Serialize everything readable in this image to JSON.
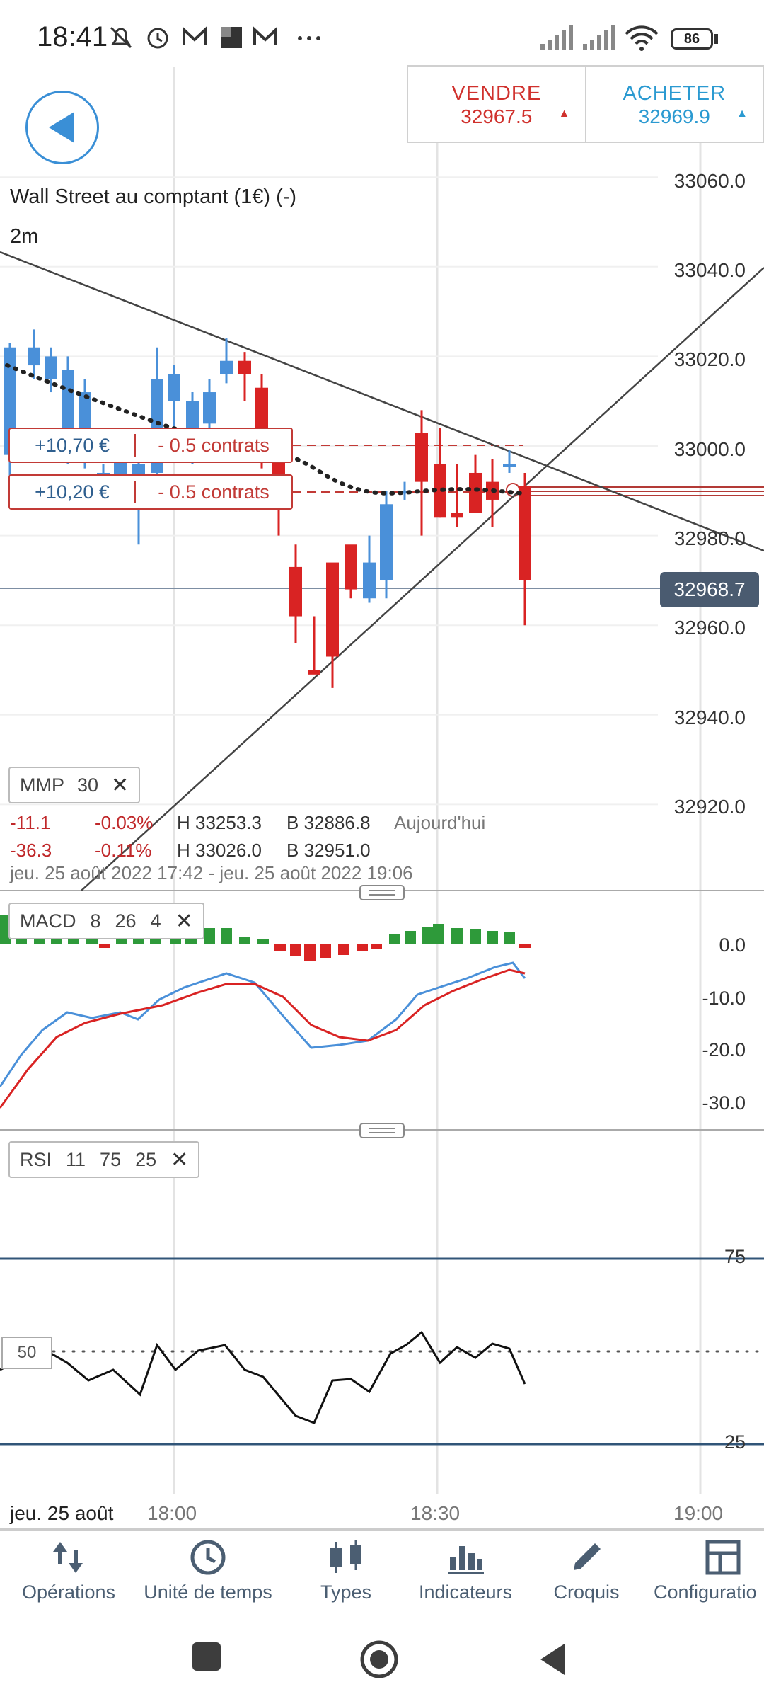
{
  "status_bar": {
    "time": "18:41",
    "battery": "86"
  },
  "trade": {
    "sell_label": "VENDRE",
    "sell_price": "32967.5",
    "buy_label": "ACHETER",
    "buy_price": "32969.9"
  },
  "instrument": {
    "title": "Wall Street au comptant (1€) (-)",
    "timeframe": "2m"
  },
  "price_axis": [
    "33060.0",
    "33040.0",
    "33020.0",
    "33000.0",
    "32980.0",
    "32960.0",
    "32940.0",
    "32920.0"
  ],
  "current_price": "32968.7",
  "orders": [
    {
      "pnl": "+10,70 €",
      "qty": "- 0.5 contrats"
    },
    {
      "pnl": "+10,20 €",
      "qty": "- 0.5 contrats"
    }
  ],
  "indicators": {
    "mmp": {
      "name": "MMP",
      "params": "30"
    },
    "macd": {
      "name": "MACD",
      "p1": "8",
      "p2": "26",
      "p3": "4"
    },
    "rsi": {
      "name": "RSI",
      "p1": "11",
      "p2": "75",
      "p3": "25",
      "mid": "50"
    }
  },
  "stats": {
    "row1": {
      "change": "-11.1",
      "pct": "-0.03%",
      "high": "H 33253.3",
      "low": "B 32886.8",
      "period": "Aujourd'hui"
    },
    "row2": {
      "change": "-36.3",
      "pct": "-0.11%",
      "high": "H 33026.0",
      "low": "B 32951.0"
    },
    "range": "jeu. 25 août 2022 17:42 - jeu. 25 août 2022 19:06"
  },
  "macd_axis": [
    "0.0",
    "-10.0",
    "-20.0",
    "-30.0"
  ],
  "rsi_axis": [
    "75",
    "25"
  ],
  "time_axis": {
    "date": "jeu. 25 août",
    "ticks": [
      "18:00",
      "18:30",
      "19:00"
    ]
  },
  "bottom_nav": [
    {
      "label": "Opérations",
      "icon": "arrows-icon"
    },
    {
      "label": "Unité de temps",
      "icon": "clock-icon"
    },
    {
      "label": "Types",
      "icon": "candles-icon"
    },
    {
      "label": "Indicateurs",
      "icon": "bars-icon"
    },
    {
      "label": "Croquis",
      "icon": "pencil-icon"
    },
    {
      "label": "Configuratio",
      "icon": "layout-icon"
    }
  ],
  "colors": {
    "up": "#4a90d9",
    "down": "#d92323",
    "accent": "#3a8fd6"
  }
}
